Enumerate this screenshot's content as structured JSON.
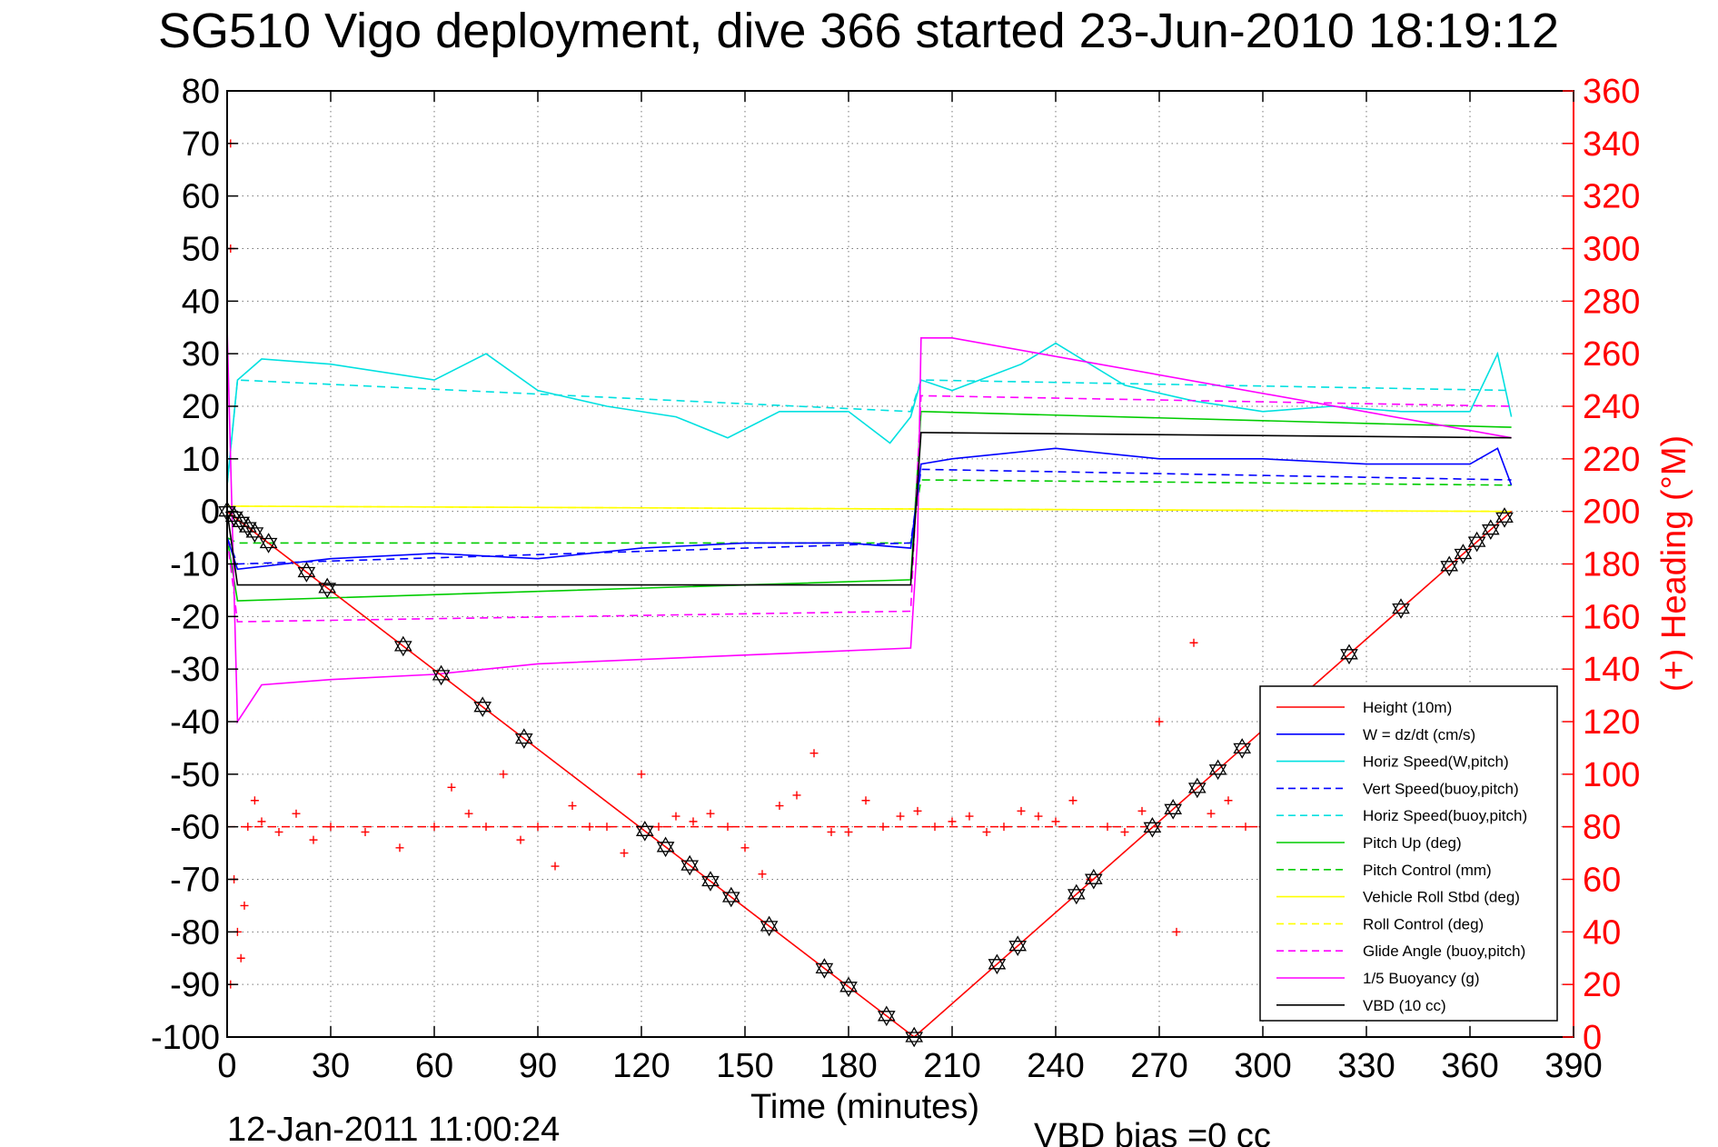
{
  "figure": {
    "title": "SG510 Vigo deployment, dive 366 started 23-Jun-2010 18:19:12",
    "timestamp": "12-Jan-2011 11:00:24",
    "vbd_note": "VBD bias =0 cc"
  },
  "chart_data": {
    "type": "line",
    "title": "SG510 Vigo deployment, dive 366 started 23-Jun-2010 18:19:12",
    "xlabel": "Time (minutes)",
    "ylabel": "",
    "y2label": "(+) Heading (°M)",
    "xlim": [
      0,
      390
    ],
    "ylim": [
      -100,
      80
    ],
    "y2lim": [
      0,
      360
    ],
    "xticks": [
      0,
      30,
      60,
      90,
      120,
      150,
      180,
      210,
      240,
      270,
      300,
      330,
      360,
      390
    ],
    "yticks": [
      80,
      70,
      60,
      50,
      40,
      30,
      20,
      10,
      0,
      -10,
      -20,
      -30,
      -40,
      -50,
      -60,
      -70,
      -80,
      -90,
      -100
    ],
    "y2ticks": [
      360,
      340,
      320,
      300,
      280,
      260,
      240,
      220,
      200,
      180,
      160,
      140,
      120,
      100,
      80,
      60,
      40,
      20,
      0
    ],
    "grid": true,
    "legend_position": "bottom-right",
    "series": [
      {
        "name": "Height (10m)",
        "color": "#ff0000",
        "style": "solid",
        "x": [
          0,
          199,
          372
        ],
        "y": [
          0,
          -100,
          0
        ]
      },
      {
        "name": "W = dz/dt (cm/s)",
        "color": "#0000ff",
        "style": "solid",
        "x": [
          0,
          3,
          30,
          60,
          90,
          120,
          150,
          180,
          198,
          201,
          210,
          240,
          270,
          300,
          330,
          360,
          368,
          372
        ],
        "y": [
          -5,
          -11,
          -9,
          -8,
          -9,
          -7,
          -6,
          -6,
          -7,
          9,
          10,
          12,
          10,
          10,
          9,
          9,
          12,
          5
        ]
      },
      {
        "name": "Horiz Speed(W,pitch)",
        "color": "#00e0e0",
        "style": "solid",
        "x": [
          0,
          3,
          10,
          30,
          60,
          75,
          90,
          110,
          130,
          145,
          160,
          180,
          192,
          198,
          201,
          210,
          230,
          240,
          260,
          280,
          300,
          320,
          340,
          360,
          368,
          372
        ],
        "y": [
          5,
          25,
          29,
          28,
          25,
          30,
          23,
          20,
          18,
          14,
          19,
          19,
          13,
          18,
          25,
          23,
          28,
          32,
          24,
          21,
          19,
          20,
          19,
          19,
          30,
          18
        ]
      },
      {
        "name": "Vert Speed(buoy,pitch)",
        "color": "#0000ff",
        "style": "dashed",
        "x": [
          0,
          3,
          198,
          201,
          372
        ],
        "y": [
          -5,
          -10,
          -6,
          8,
          6
        ]
      },
      {
        "name": "Horiz Speed(buoy,pitch)",
        "color": "#00e0e0",
        "style": "dashed",
        "x": [
          0,
          3,
          198,
          201,
          372
        ],
        "y": [
          5,
          25,
          19,
          25,
          23
        ]
      },
      {
        "name": "Pitch Up (deg)",
        "color": "#00cc00",
        "style": "solid",
        "x": [
          0,
          3,
          198,
          201,
          372
        ],
        "y": [
          -5,
          -17,
          -13,
          19,
          16
        ]
      },
      {
        "name": "Pitch Control (mm)",
        "color": "#00cc00",
        "style": "dashed",
        "x": [
          0,
          3,
          198,
          201,
          372
        ],
        "y": [
          -5,
          -6,
          -6,
          6,
          5
        ]
      },
      {
        "name": "Vehicle Roll Stbd (deg)",
        "color": "#ffff00",
        "style": "solid",
        "x": [
          0,
          372
        ],
        "y": [
          1,
          0
        ]
      },
      {
        "name": "Roll Control (deg)",
        "color": "#ffff00",
        "style": "dashed",
        "x": [
          0,
          372
        ],
        "y": [
          1,
          0
        ]
      },
      {
        "name": "Glide Angle (buoy,pitch)",
        "color": "#ff00ff",
        "style": "dashed",
        "x": [
          0,
          3,
          198,
          201,
          372
        ],
        "y": [
          -5,
          -21,
          -19,
          22,
          20
        ]
      },
      {
        "name": "1/5 Buoyancy (g)",
        "color": "#ff00ff",
        "style": "solid",
        "x": [
          0,
          3,
          10,
          30,
          60,
          90,
          198,
          200,
          201,
          210,
          372
        ],
        "y": [
          35,
          -40,
          -33,
          -32,
          -31,
          -29,
          -26,
          -5,
          33,
          33,
          14
        ]
      },
      {
        "name": "VBD (10 cc)",
        "color": "#000000",
        "style": "solid",
        "x": [
          0,
          3,
          198,
          201,
          372
        ],
        "y": [
          0,
          -14,
          -14,
          15,
          14
        ]
      }
    ],
    "heading": {
      "name": "(+) Heading",
      "axis": "right",
      "color": "#ff0000",
      "marker": "+",
      "mean_line": 80,
      "x": [
        1,
        1,
        1,
        2,
        3,
        4,
        5,
        6,
        8,
        10,
        15,
        20,
        25,
        30,
        40,
        50,
        60,
        65,
        70,
        75,
        80,
        85,
        90,
        95,
        100,
        105,
        110,
        115,
        120,
        125,
        130,
        135,
        140,
        145,
        150,
        155,
        160,
        165,
        170,
        175,
        180,
        185,
        190,
        195,
        200,
        205,
        210,
        215,
        220,
        225,
        230,
        235,
        240,
        245,
        250,
        255,
        260,
        265,
        270,
        275,
        280,
        285,
        290,
        295,
        300,
        310,
        320,
        330,
        340,
        350,
        360,
        370
      ],
      "y": [
        340,
        300,
        20,
        60,
        40,
        30,
        50,
        80,
        90,
        82,
        78,
        85,
        75,
        80,
        78,
        72,
        80,
        95,
        85,
        80,
        100,
        75,
        80,
        65,
        88,
        80,
        80,
        70,
        100,
        80,
        84,
        82,
        85,
        80,
        72,
        62,
        88,
        92,
        108,
        78,
        78,
        90,
        80,
        84,
        86,
        80,
        82,
        84,
        78,
        80,
        86,
        84,
        82,
        90,
        60,
        80,
        78,
        86,
        120,
        40,
        150,
        85,
        90,
        80,
        80,
        84,
        80,
        82,
        80,
        84,
        80,
        82
      ]
    },
    "waypoints": {
      "marker": "hexagram",
      "x": [
        0,
        2,
        4,
        6,
        8,
        12,
        23,
        29,
        51,
        62,
        74,
        86,
        121,
        127,
        134,
        140,
        146,
        157,
        173,
        180,
        191,
        199,
        223,
        229,
        246,
        251,
        268,
        274,
        281,
        287,
        294,
        309,
        325,
        340,
        354,
        358,
        362,
        366,
        370
      ]
    }
  },
  "legend": {
    "entries": [
      {
        "label": "Height (10m)",
        "color": "#ff0000",
        "style": "solid"
      },
      {
        "label": "W = dz/dt (cm/s)",
        "color": "#0000ff",
        "style": "solid"
      },
      {
        "label": "Horiz Speed(W,pitch)",
        "color": "#00e0e0",
        "style": "solid"
      },
      {
        "label": "Vert Speed(buoy,pitch)",
        "color": "#0000ff",
        "style": "dashed"
      },
      {
        "label": "Horiz Speed(buoy,pitch)",
        "color": "#00e0e0",
        "style": "dashed"
      },
      {
        "label": "Pitch Up (deg)",
        "color": "#00cc00",
        "style": "solid"
      },
      {
        "label": "Pitch Control (mm)",
        "color": "#00cc00",
        "style": "dashed"
      },
      {
        "label": "Vehicle Roll Stbd (deg)",
        "color": "#ffff00",
        "style": "solid"
      },
      {
        "label": "Roll Control (deg)",
        "color": "#ffff00",
        "style": "dashed"
      },
      {
        "label": "Glide Angle (buoy,pitch)",
        "color": "#ff00ff",
        "style": "dashed"
      },
      {
        "label": "1/5 Buoyancy (g)",
        "color": "#ff00ff",
        "style": "solid"
      },
      {
        "label": "VBD (10 cc)",
        "color": "#000000",
        "style": "solid"
      }
    ]
  }
}
